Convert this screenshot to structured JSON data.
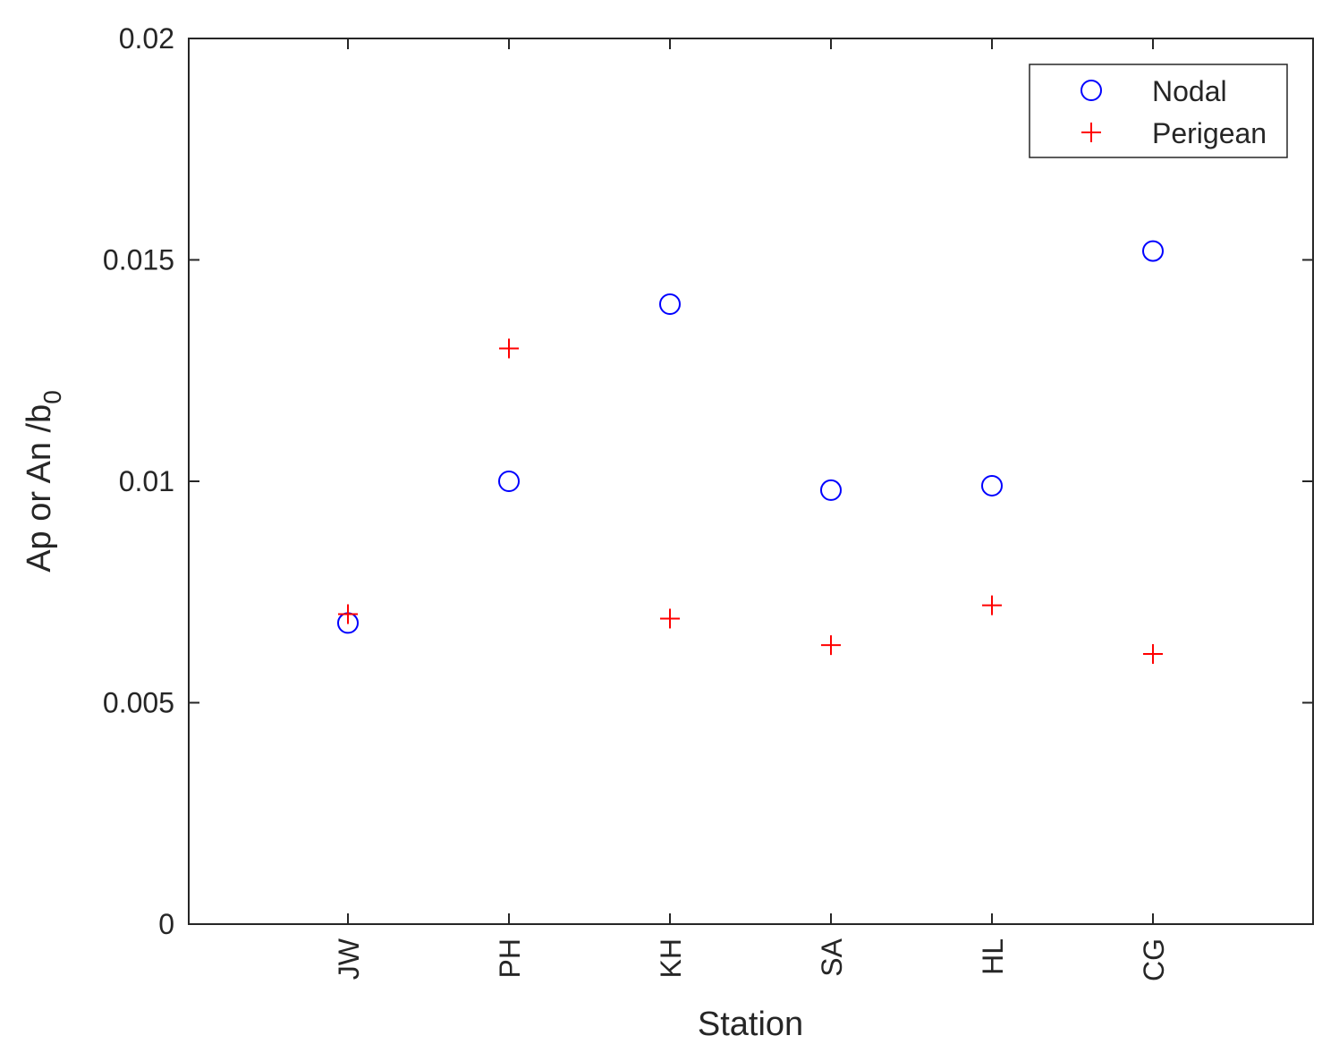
{
  "chart_data": {
    "type": "scatter",
    "categories": [
      "JW",
      "PH",
      "KH",
      "SA",
      "HL",
      "CG"
    ],
    "xlabel": "Station",
    "ylabel": "Ap or An /b",
    "ylabel_subscript": "0",
    "ylim": [
      0,
      0.02
    ],
    "yticks": [
      "0",
      "0.005",
      "0.01",
      "0.015",
      "0.02"
    ],
    "grid": false,
    "legend_position": "top-right",
    "series": [
      {
        "name": "Nodal",
        "marker": "circle",
        "color": "#0000ff",
        "values": [
          0.0068,
          0.01,
          0.014,
          0.0098,
          0.0099,
          0.0152
        ]
      },
      {
        "name": "Perigean",
        "marker": "plus",
        "color": "#ff0000",
        "values": [
          0.007,
          0.013,
          0.0069,
          0.0063,
          0.0072,
          0.0061
        ]
      }
    ]
  }
}
